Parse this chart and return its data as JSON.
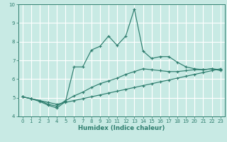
{
  "xlabel": "Humidex (Indice chaleur)",
  "xlim": [
    -0.5,
    23.5
  ],
  "ylim": [
    4,
    10
  ],
  "xticks": [
    0,
    1,
    2,
    3,
    4,
    5,
    6,
    7,
    8,
    9,
    10,
    11,
    12,
    13,
    14,
    15,
    16,
    17,
    18,
    19,
    20,
    21,
    22,
    23
  ],
  "yticks": [
    4,
    5,
    6,
    7,
    8,
    9,
    10
  ],
  "bg_color": "#c8eae4",
  "grid_color": "#ffffff",
  "line_color": "#2e7d6e",
  "lines": [
    {
      "x": [
        0,
        1,
        2,
        3,
        4,
        5,
        6,
        7,
        8,
        9,
        10,
        11,
        12,
        13,
        14,
        15,
        16,
        17,
        18,
        19,
        20,
        21,
        22,
        23
      ],
      "y": [
        5.05,
        4.95,
        4.85,
        4.75,
        4.65,
        4.75,
        4.85,
        4.95,
        5.05,
        5.15,
        5.25,
        5.35,
        5.45,
        5.55,
        5.65,
        5.75,
        5.85,
        5.95,
        6.05,
        6.15,
        6.25,
        6.35,
        6.45,
        6.55
      ]
    },
    {
      "x": [
        0,
        1,
        2,
        3,
        4,
        5,
        6,
        7,
        8,
        9,
        10,
        11,
        12,
        13,
        14,
        15,
        16,
        17,
        18,
        19,
        20,
        21,
        22,
        23
      ],
      "y": [
        5.05,
        4.95,
        4.85,
        4.65,
        4.55,
        4.85,
        5.1,
        5.3,
        5.55,
        5.75,
        5.9,
        6.05,
        6.25,
        6.4,
        6.55,
        6.5,
        6.45,
        6.4,
        6.4,
        6.45,
        6.5,
        6.5,
        6.55,
        6.45
      ]
    },
    {
      "x": [
        0,
        1,
        2,
        3,
        4,
        5,
        6,
        7,
        8,
        9,
        10,
        11,
        12,
        13,
        14,
        15,
        16,
        17,
        18,
        19,
        20,
        21,
        22,
        23
      ],
      "y": [
        5.05,
        4.95,
        4.8,
        4.6,
        4.45,
        4.8,
        6.65,
        6.65,
        7.55,
        7.75,
        8.3,
        7.8,
        8.3,
        9.75,
        7.5,
        7.1,
        7.2,
        7.2,
        6.9,
        6.65,
        6.55,
        6.5,
        6.55,
        6.5
      ]
    }
  ]
}
